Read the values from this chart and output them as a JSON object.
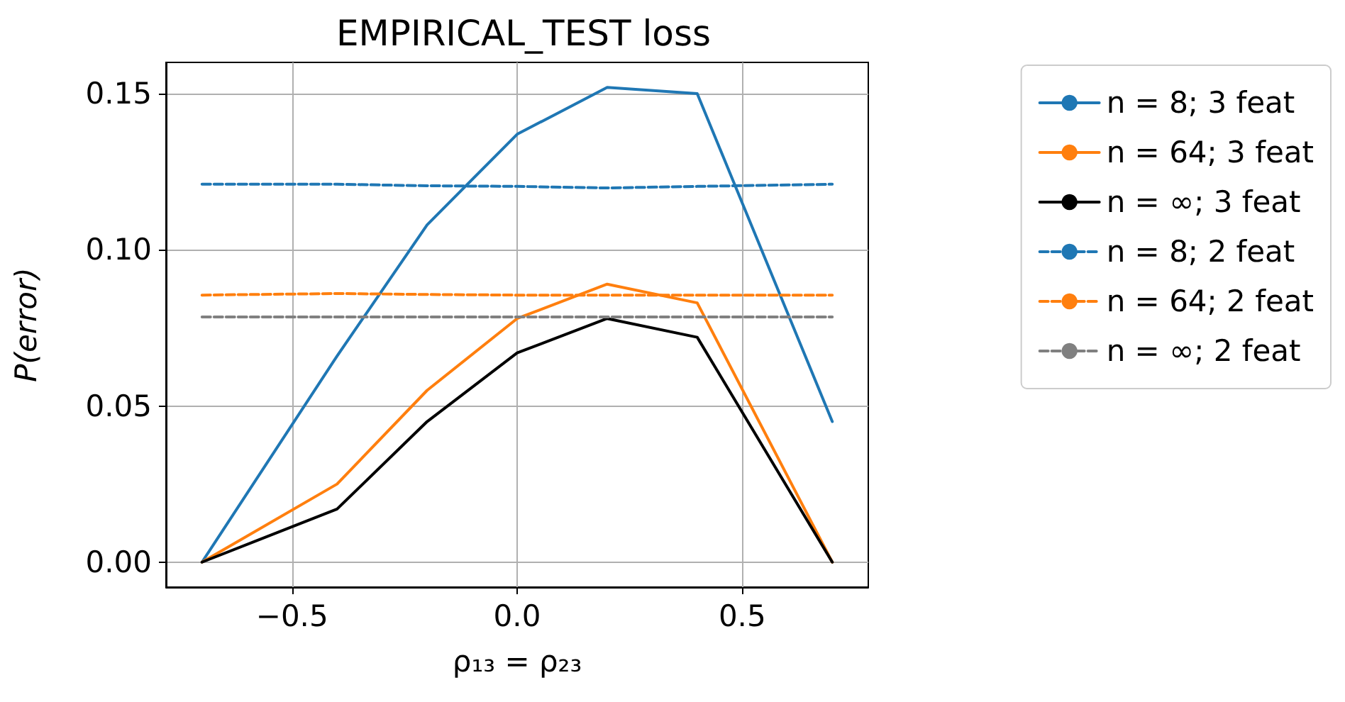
{
  "chart_data": {
    "type": "line",
    "title": "EMPIRICAL_TEST loss",
    "xlabel": "ρ₁₃ = ρ₂₃",
    "ylabel": "P(error)",
    "x": [
      -0.7,
      -0.4,
      -0.2,
      0.0,
      0.2,
      0.4,
      0.7
    ],
    "xlim": [
      -0.78,
      0.78
    ],
    "xticks": [
      {
        "value": -0.5,
        "label": "−0.5"
      },
      {
        "value": 0,
        "label": "0.0"
      },
      {
        "value": 0.5,
        "label": "0.5"
      }
    ],
    "ylim": [
      -0.008,
      0.16
    ],
    "yticks": [
      {
        "value": 0,
        "label": "0.00"
      },
      {
        "value": 0.05,
        "label": "0.05"
      },
      {
        "value": 0.1,
        "label": "0.10"
      },
      {
        "value": 0.15,
        "label": "0.15"
      }
    ],
    "grid": true,
    "legend": "right",
    "marker": "none",
    "series": [
      {
        "name": "n = 8; 3 feat",
        "color": "#1f77b4",
        "line_style": "solid",
        "values": [
          0.0,
          0.066,
          0.108,
          0.137,
          0.152,
          0.15,
          0.045
        ]
      },
      {
        "name": "n = 64; 3 feat",
        "color": "#ff7f0e",
        "line_style": "solid",
        "values": [
          0.0,
          0.025,
          0.055,
          0.078,
          0.089,
          0.083,
          0.0
        ]
      },
      {
        "name": "n = ∞; 3 feat",
        "color": "#000000",
        "line_style": "solid",
        "values": [
          0.0,
          0.017,
          0.045,
          0.067,
          0.078,
          0.072,
          0.0
        ]
      },
      {
        "name": "n = 8; 2 feat",
        "color": "#1f77b4",
        "line_style": "dashed",
        "values": [
          0.121,
          0.121,
          0.1205,
          0.1203,
          0.1198,
          0.1203,
          0.121
        ]
      },
      {
        "name": "n = 64; 2 feat",
        "color": "#ff7f0e",
        "line_style": "dashed",
        "values": [
          0.0855,
          0.086,
          0.0857,
          0.0855,
          0.0855,
          0.0855,
          0.0855
        ]
      },
      {
        "name": "n = ∞; 2 feat",
        "color": "#808080",
        "line_style": "dashed",
        "values": [
          0.0785,
          0.0785,
          0.0785,
          0.0785,
          0.0785,
          0.0785,
          0.0785
        ]
      }
    ]
  }
}
